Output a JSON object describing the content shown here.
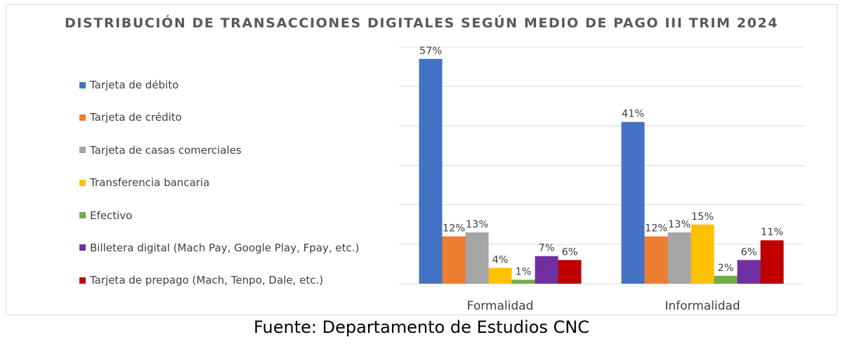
{
  "chart_data": {
    "type": "bar",
    "title": "DISTRIBUCIÓN DE TRANSACCIONES DIGITALES SEGÚN MEDIO DE PAGO III TRIM 2024",
    "categories": [
      "Formalidad",
      "Informalidad"
    ],
    "series": [
      {
        "name": "Tarjeta de débito",
        "color": "#4472C4",
        "values": [
          57,
          41
        ],
        "labels": [
          "57%",
          "41%"
        ]
      },
      {
        "name": "Tarjeta de crédito",
        "color": "#ED7D31",
        "values": [
          12,
          12
        ],
        "labels": [
          "12%",
          "12%"
        ]
      },
      {
        "name": "Tarjeta de casas comerciales",
        "color": "#A5A5A5",
        "values": [
          13,
          13
        ],
        "labels": [
          "13%",
          "13%"
        ]
      },
      {
        "name": "Transferencia bancaria",
        "color": "#FFC000",
        "values": [
          4,
          15
        ],
        "labels": [
          "4%",
          "15%"
        ]
      },
      {
        "name": "Efectivo",
        "color": "#70AD47",
        "values": [
          1,
          2
        ],
        "labels": [
          "1%",
          "2%"
        ]
      },
      {
        "name": "Billetera digital (Mach Pay, Google Play, Fpay, etc.)",
        "color": "#7030A0",
        "values": [
          7,
          6
        ],
        "labels": [
          "7%",
          "6%"
        ]
      },
      {
        "name": "Tarjeta de prepago (Mach, Tenpo, Dale, etc.)",
        "color": "#C00000",
        "values": [
          6,
          11
        ],
        "labels": [
          "6%",
          "11%"
        ]
      }
    ],
    "ylim": [
      0,
      60
    ],
    "grid": true,
    "legend_position": "left"
  },
  "source": "Fuente: Departamento de Estudios CNC"
}
